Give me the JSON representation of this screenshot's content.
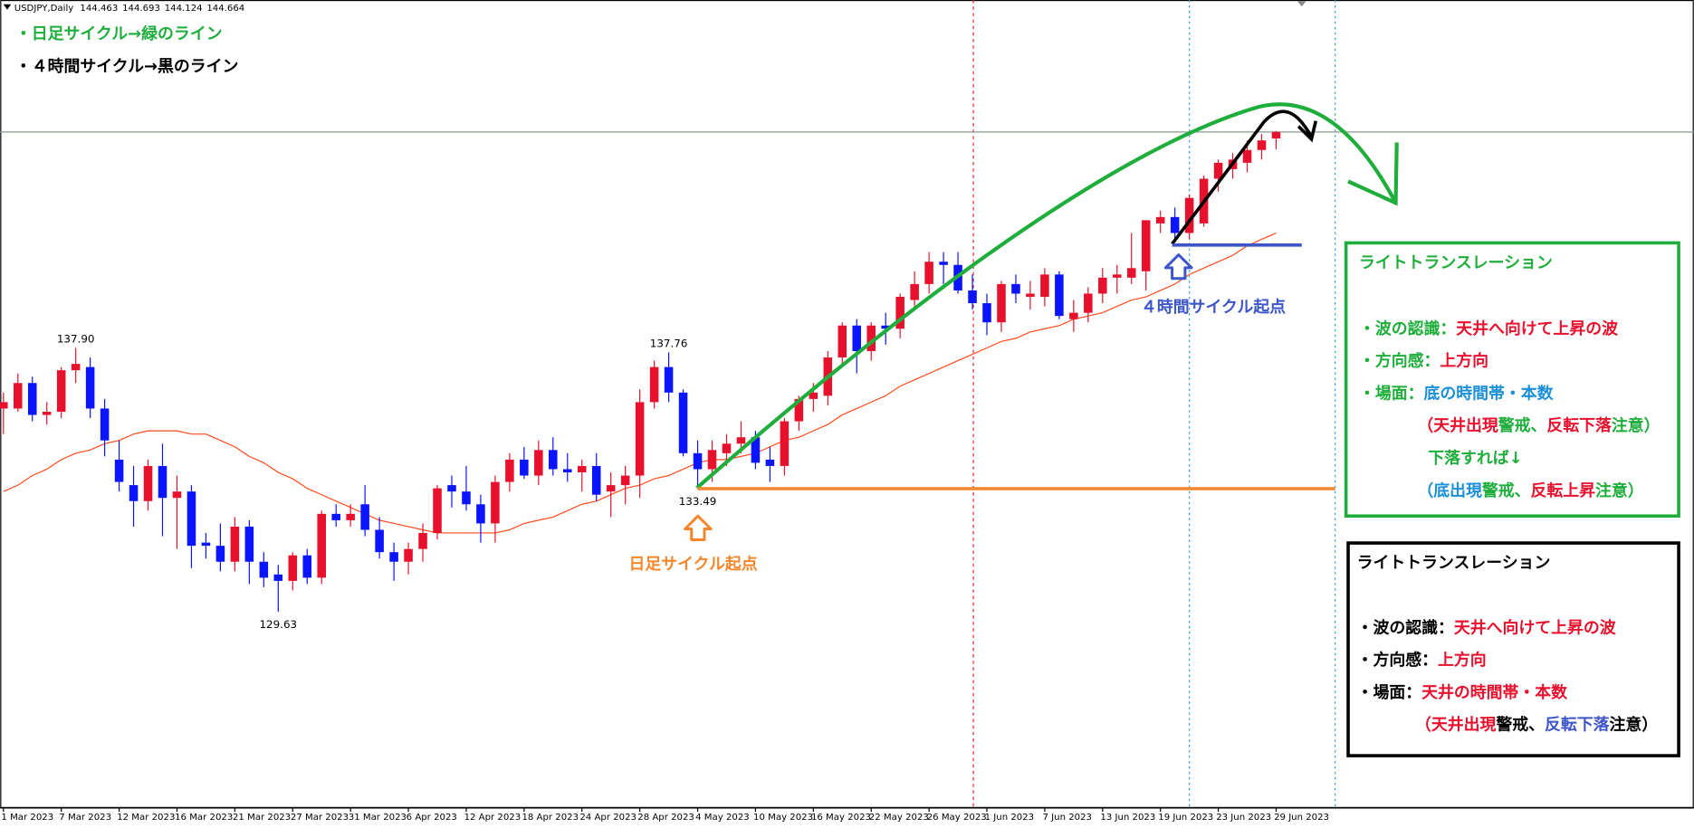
{
  "chart_data": {
    "type": "candlestick",
    "symbol": "USDJPY,Daily",
    "categories": [
      "1 Mar 2023",
      null,
      null,
      null,
      "7 Mar 2023",
      null,
      null,
      null,
      "12 Mar 2023",
      null,
      null,
      null,
      "16 Mar 2023",
      null,
      null,
      null,
      "21 Mar 2023",
      null,
      null,
      null,
      "27 Mar 2023",
      null,
      null,
      null,
      "31 Mar 2023",
      null,
      null,
      null,
      "6 Apr 2023",
      null,
      null,
      null,
      "12 Apr 2023",
      null,
      null,
      null,
      "18 Apr 2023",
      null,
      null,
      null,
      "24 Apr 2023",
      null,
      null,
      null,
      "28 Apr 2023",
      null,
      null,
      null,
      "4 May 2023",
      null,
      null,
      null,
      "10 May 2023",
      null,
      null,
      null,
      "16 May 2023",
      null,
      null,
      null,
      "22 May 2023",
      null,
      null,
      null,
      "26 May 2023",
      null,
      null,
      null,
      "1 Jun 2023",
      null,
      null,
      null,
      "7 Jun 2023",
      null,
      null,
      null,
      "13 Jun 2023",
      null,
      null,
      null,
      "19 Jun 2023",
      null,
      null,
      null,
      "23 Jun 2023",
      null,
      null,
      null,
      "29 Jun 2023"
    ],
    "open": [
      136.0,
      136.0,
      136.8,
      135.8,
      135.9,
      137.2,
      137.3,
      136.0,
      134.4,
      133.6,
      133.1,
      134.2,
      133.2,
      133.4,
      131.8,
      131.7,
      131.2,
      132.3,
      131.2,
      130.8,
      130.6,
      131.4,
      130.7,
      132.7,
      132.5,
      133.0,
      132.2,
      131.5,
      131.2,
      131.6,
      132.1,
      133.6,
      133.4,
      133.0,
      132.4,
      133.7,
      134.4,
      133.9,
      134.7,
      134.1,
      134.0,
      134.2,
      133.4,
      133.6,
      133.9,
      136.2,
      137.3,
      136.5,
      134.6,
      134.1,
      134.6,
      134.9,
      135.1,
      134.4,
      134.2,
      135.6,
      136.3,
      136.4,
      137.6,
      138.6,
      137.8,
      138.6,
      138.5,
      139.4,
      139.9,
      140.6,
      140.5,
      139.7,
      139.3,
      138.7,
      139.9,
      139.5,
      139.5,
      140.2,
      138.8,
      139.0,
      139.6,
      140.1,
      140.1,
      140.3,
      141.8,
      142.0,
      141.5,
      141.8,
      143.2,
      143.5,
      143.7,
      144.1,
      144.463
    ],
    "high": [
      136.5,
      137.1,
      137.0,
      136.2,
      137.3,
      137.9,
      137.6,
      136.3,
      135.0,
      134.2,
      134.4,
      134.9,
      133.9,
      133.6,
      132.1,
      132.4,
      132.6,
      132.5,
      131.5,
      131.1,
      131.5,
      131.6,
      132.8,
      133.0,
      133.0,
      133.6,
      132.6,
      131.8,
      131.8,
      132.4,
      133.6,
      133.9,
      134.2,
      133.3,
      133.9,
      134.6,
      134.8,
      135.0,
      135.1,
      134.6,
      134.4,
      134.6,
      134.0,
      134.2,
      136.6,
      137.5,
      137.76,
      136.6,
      135.0,
      135.0,
      135.2,
      135.6,
      135.3,
      134.8,
      135.7,
      136.4,
      136.8,
      137.8,
      138.7,
      138.8,
      138.7,
      139.0,
      139.6,
      140.3,
      140.9,
      140.9,
      140.9,
      140.2,
      139.6,
      140.0,
      140.2,
      140.0,
      140.4,
      140.3,
      139.4,
      139.8,
      140.4,
      140.5,
      141.5,
      141.9,
      142.2,
      142.3,
      142.7,
      143.3,
      143.8,
      144.0,
      144.4,
      144.6,
      144.693
    ],
    "low": [
      135.2,
      135.9,
      135.6,
      135.5,
      135.7,
      136.8,
      135.7,
      134.5,
      133.4,
      132.3,
      132.8,
      132.0,
      131.6,
      131.0,
      131.3,
      130.9,
      130.9,
      130.5,
      130.4,
      129.63,
      130.3,
      130.5,
      130.5,
      132.3,
      132.3,
      132.0,
      131.3,
      130.6,
      130.8,
      131.2,
      131.9,
      132.9,
      132.8,
      131.8,
      131.8,
      133.4,
      133.8,
      133.6,
      133.9,
      133.7,
      133.4,
      133.1,
      132.6,
      133.0,
      133.2,
      136.0,
      136.2,
      134.5,
      133.49,
      133.7,
      134.2,
      134.6,
      134.1,
      133.7,
      133.9,
      135.3,
      135.9,
      136.1,
      137.3,
      137.1,
      137.5,
      138.0,
      138.2,
      139.2,
      139.6,
      139.9,
      139.6,
      139.1,
      138.3,
      138.4,
      139.3,
      139.1,
      139.2,
      138.8,
      138.4,
      138.7,
      139.3,
      139.6,
      139.9,
      139.7,
      141.5,
      141.3,
      141.3,
      141.7,
      142.8,
      143.2,
      143.4,
      143.8,
      144.124
    ],
    "close": [
      136.2,
      136.8,
      135.8,
      135.9,
      137.2,
      137.4,
      136.0,
      135.0,
      133.7,
      133.1,
      134.2,
      133.2,
      133.4,
      131.7,
      131.7,
      131.2,
      132.3,
      131.2,
      130.7,
      130.6,
      131.4,
      130.7,
      132.7,
      132.5,
      132.7,
      132.2,
      131.5,
      131.2,
      131.6,
      132.1,
      133.5,
      133.4,
      133.0,
      132.4,
      133.7,
      134.4,
      133.9,
      134.7,
      134.1,
      134.0,
      134.2,
      133.3,
      133.6,
      133.9,
      136.2,
      137.3,
      136.5,
      134.6,
      134.1,
      134.7,
      134.9,
      135.1,
      134.3,
      134.2,
      135.6,
      136.3,
      136.5,
      137.6,
      138.6,
      137.8,
      138.6,
      138.5,
      139.5,
      139.9,
      140.6,
      140.5,
      139.7,
      139.3,
      138.7,
      139.9,
      139.6,
      139.6,
      140.2,
      138.9,
      139.0,
      139.6,
      140.1,
      140.2,
      140.4,
      141.9,
      142.0,
      141.5,
      142.6,
      143.2,
      143.7,
      143.8,
      144.1,
      144.4,
      144.664
    ],
    "high_labels": [
      null,
      null,
      null,
      null,
      null,
      "137.90",
      null,
      null,
      null,
      null,
      null,
      null,
      null,
      null,
      null,
      null,
      null,
      null,
      null,
      null,
      null,
      null,
      null,
      null,
      null,
      null,
      null,
      null,
      null,
      null,
      null,
      null,
      null,
      null,
      null,
      null,
      null,
      null,
      null,
      null,
      null,
      null,
      null,
      null,
      null,
      null,
      "137.76",
      null,
      null,
      null,
      null,
      null,
      null,
      null,
      null,
      null,
      null,
      null,
      null,
      null,
      null,
      null,
      null,
      null,
      null,
      null,
      null,
      null,
      null,
      null,
      null,
      null,
      null,
      null,
      null,
      null,
      null,
      null,
      null,
      null,
      null,
      null,
      null,
      null,
      null,
      null,
      null,
      null,
      null
    ],
    "low_labels": [
      null,
      null,
      null,
      null,
      null,
      null,
      null,
      null,
      null,
      null,
      null,
      null,
      null,
      null,
      null,
      null,
      null,
      null,
      null,
      "129.63",
      null,
      null,
      null,
      null,
      null,
      null,
      null,
      null,
      null,
      null,
      null,
      null,
      null,
      null,
      null,
      null,
      null,
      null,
      null,
      null,
      null,
      null,
      null,
      null,
      null,
      null,
      null,
      null,
      "133.49",
      null,
      null,
      null,
      null,
      null,
      null,
      null,
      null,
      null,
      null,
      null,
      null,
      null,
      null,
      null,
      null,
      null,
      null,
      null,
      null,
      null,
      null,
      null,
      null,
      null,
      null,
      null,
      null,
      null,
      null,
      null,
      null,
      null,
      null,
      null,
      null,
      null,
      null,
      null,
      null
    ],
    "up_color": "#e8112d",
    "down_color": "#0a14ff",
    "ylim": [
      123.5,
      148.8
    ],
    "ma": {
      "color": "#ff4a1a",
      "values": [
        133.4,
        133.6,
        133.9,
        134.1,
        134.4,
        134.6,
        134.7,
        134.9,
        135.0,
        135.2,
        135.3,
        135.3,
        135.3,
        135.2,
        135.2,
        135.0,
        134.8,
        134.5,
        134.3,
        134.0,
        133.8,
        133.5,
        133.3,
        133.1,
        132.9,
        132.7,
        132.5,
        132.4,
        132.3,
        132.2,
        132.1,
        132.1,
        132.1,
        132.1,
        132.1,
        132.2,
        132.4,
        132.5,
        132.6,
        132.8,
        133.0,
        133.1,
        133.3,
        133.5,
        133.6,
        133.8,
        133.9,
        134.1,
        134.3,
        134.4,
        134.4,
        134.5,
        134.6,
        134.8,
        135.0,
        135.1,
        135.3,
        135.5,
        135.8,
        136.0,
        136.2,
        136.4,
        136.7,
        136.9,
        137.1,
        137.3,
        137.5,
        137.7,
        137.9,
        138.1,
        138.2,
        138.4,
        138.5,
        138.6,
        138.8,
        138.9,
        139.0,
        139.2,
        139.4,
        139.5,
        139.7,
        139.9,
        140.2,
        140.4,
        140.6,
        140.8,
        141.1,
        141.3,
        141.5
      ]
    }
  },
  "annotations": {
    "legend": [
      {
        "text": "・日足サイクル→緑のライン",
        "color": "#1fae3c"
      },
      {
        "text": "・４時間サイクル→黒のライン",
        "color": "#000000"
      }
    ],
    "daily_start": {
      "text": "日足サイクル起点",
      "color": "#f5862c"
    },
    "h4_start": {
      "text": "４時間サイクル起点",
      "color": "#3c55c8"
    },
    "boxes": [
      {
        "color": "#1fae3c",
        "title": {
          "text": "ライトトランスレーション",
          "color": "#1fae3c"
        },
        "lines": [
          [
            {
              "text": "・波の認識：",
              "color": "#1fae3c"
            },
            {
              "text": "天井へ向けて上昇の波",
              "color": "#e8112d"
            }
          ],
          [
            {
              "text": "・方向感：",
              "color": "#1fae3c"
            },
            {
              "text": "上方向",
              "color": "#e8112d"
            }
          ],
          [
            {
              "text": "・場面：",
              "color": "#1fae3c"
            },
            {
              "text": "底の時間帯・本数",
              "color": "#1b8fd8"
            }
          ],
          [
            {
              "text": "（天井出現",
              "color": "#e8112d"
            },
            {
              "text": "警戒、",
              "color": "#1fae3c"
            },
            {
              "text": "反転下落",
              "color": "#e8112d"
            },
            {
              "text": "注意）",
              "color": "#1fae3c"
            }
          ],
          [
            {
              "text": "下落すれば↓",
              "color": "#1fae3c"
            }
          ],
          [
            {
              "text": "（底出現",
              "color": "#1b8fd8"
            },
            {
              "text": "警戒、",
              "color": "#1fae3c"
            },
            {
              "text": "反転上昇",
              "color": "#e8112d"
            },
            {
              "text": "注意）",
              "color": "#1fae3c"
            }
          ]
        ]
      },
      {
        "color": "#000000",
        "title": {
          "text": "ライトトランスレーション",
          "color": "#000000"
        },
        "lines": [
          [
            {
              "text": "・波の認識：",
              "color": "#000000"
            },
            {
              "text": "天井へ向けて上昇の波",
              "color": "#e8112d"
            }
          ],
          [
            {
              "text": "・方向感：",
              "color": "#000000"
            },
            {
              "text": "上方向",
              "color": "#e8112d"
            }
          ],
          [
            {
              "text": "・場面：",
              "color": "#000000"
            },
            {
              "text": "天井の時間帯・本数",
              "color": "#e8112d"
            }
          ],
          [
            {
              "text": "（天井出現",
              "color": "#e8112d"
            },
            {
              "text": "警戒、",
              "color": "#000000"
            },
            {
              "text": "反転下落",
              "color": "#3c55c8"
            },
            {
              "text": "注意）",
              "color": "#000000"
            }
          ]
        ]
      }
    ]
  }
}
